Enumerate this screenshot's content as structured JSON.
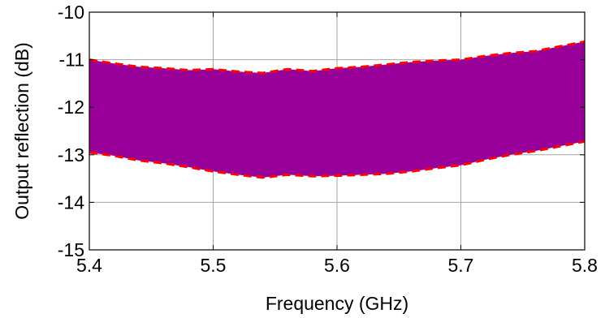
{
  "chart_data": {
    "type": "area",
    "title": "",
    "xlabel": "Frequency (GHz)",
    "ylabel": "Output reflection (dB)",
    "xlim": [
      5.4,
      5.8
    ],
    "ylim": [
      -15,
      -10
    ],
    "xticks": [
      5.4,
      5.5,
      5.6,
      5.7,
      5.8
    ],
    "xtick_labels": [
      "5.4",
      "5.5",
      "5.6",
      "5.7",
      "5.8"
    ],
    "yticks": [
      -15,
      -14,
      -13,
      -12,
      -11,
      -10
    ],
    "ytick_labels": [
      "-15",
      "-14",
      "-13",
      "-12",
      "-11",
      "-10"
    ],
    "grid": true,
    "band": {
      "fill_color": "#990099",
      "edge_color": "#ff0000",
      "edge_style": "dashed",
      "x": [
        5.4,
        5.42,
        5.44,
        5.46,
        5.48,
        5.5,
        5.52,
        5.54,
        5.56,
        5.58,
        5.6,
        5.62,
        5.64,
        5.66,
        5.68,
        5.7,
        5.72,
        5.74,
        5.76,
        5.78,
        5.8
      ],
      "upper": [
        -11.0,
        -11.08,
        -11.15,
        -11.18,
        -11.22,
        -11.2,
        -11.25,
        -11.28,
        -11.2,
        -11.24,
        -11.18,
        -11.15,
        -11.1,
        -11.05,
        -11.02,
        -11.0,
        -10.92,
        -10.86,
        -10.82,
        -10.72,
        -10.62
      ],
      "lower": [
        -12.95,
        -13.02,
        -13.12,
        -13.18,
        -13.26,
        -13.35,
        -13.42,
        -13.48,
        -13.42,
        -13.45,
        -13.44,
        -13.42,
        -13.4,
        -13.35,
        -13.28,
        -13.22,
        -13.1,
        -13.0,
        -12.92,
        -12.82,
        -12.72
      ]
    }
  }
}
